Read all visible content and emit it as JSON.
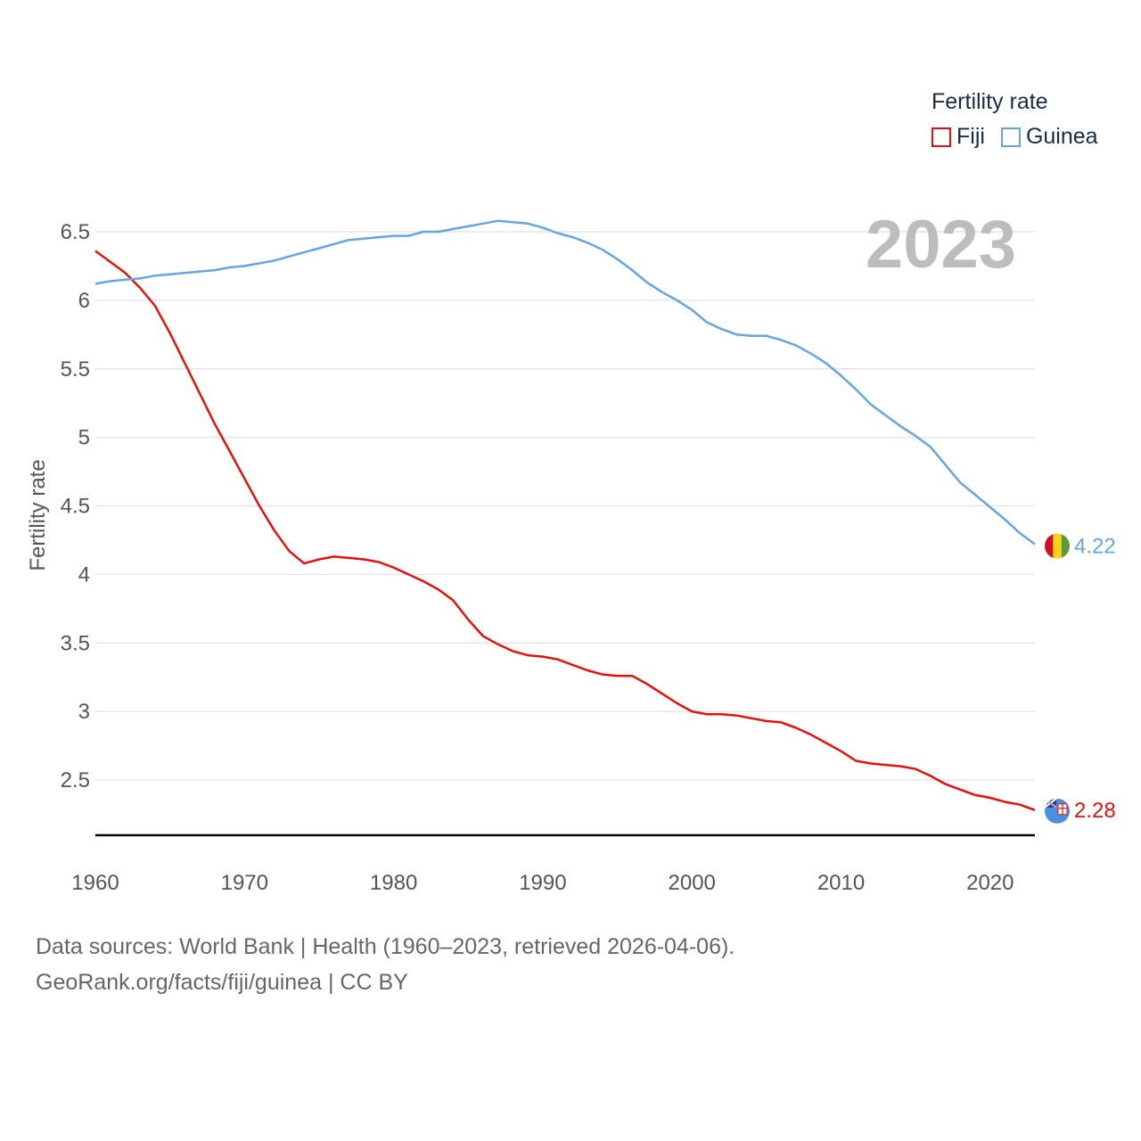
{
  "chart_data": {
    "type": "line",
    "title": "Fertility rate",
    "xlabel": "",
    "ylabel": "Fertility rate",
    "current_year_label": "2023",
    "xlim": [
      1960,
      2023
    ],
    "ylim": [
      2.1,
      6.7
    ],
    "x_ticks": [
      1960,
      1970,
      1980,
      1990,
      2000,
      2010,
      2020
    ],
    "y_ticks": [
      2.5,
      3,
      3.5,
      4,
      4.5,
      5,
      5.5,
      6,
      6.5
    ],
    "y_tick_labels": [
      "2.5",
      "3",
      "3.5",
      "4",
      "4.5",
      "5",
      "5.5",
      "6",
      "6.5"
    ],
    "x_tick_labels": [
      "1960",
      "1970",
      "1980",
      "1990",
      "2000",
      "2010",
      "2020"
    ],
    "x": [
      1960,
      1961,
      1962,
      1963,
      1964,
      1965,
      1966,
      1967,
      1968,
      1969,
      1970,
      1971,
      1972,
      1973,
      1974,
      1975,
      1976,
      1977,
      1978,
      1979,
      1980,
      1981,
      1982,
      1983,
      1984,
      1985,
      1986,
      1987,
      1988,
      1989,
      1990,
      1991,
      1992,
      1993,
      1994,
      1995,
      1996,
      1997,
      1998,
      1999,
      2000,
      2001,
      2002,
      2003,
      2004,
      2005,
      2006,
      2007,
      2008,
      2009,
      2010,
      2011,
      2012,
      2013,
      2014,
      2015,
      2016,
      2017,
      2018,
      2019,
      2020,
      2021,
      2022,
      2023
    ],
    "series": [
      {
        "name": "Fiji",
        "color": "#e8100c",
        "end_label": "2.28",
        "values": [
          6.36,
          6.28,
          6.2,
          6.09,
          5.96,
          5.76,
          5.54,
          5.32,
          5.1,
          4.9,
          4.7,
          4.5,
          4.32,
          4.17,
          4.08,
          4.11,
          4.13,
          4.12,
          4.11,
          4.09,
          4.05,
          4.0,
          3.95,
          3.89,
          3.81,
          3.67,
          3.55,
          3.49,
          3.44,
          3.41,
          3.4,
          3.38,
          3.34,
          3.3,
          3.27,
          3.26,
          3.26,
          3.2,
          3.13,
          3.06,
          3.0,
          2.98,
          2.98,
          2.97,
          2.95,
          2.93,
          2.92,
          2.88,
          2.83,
          2.77,
          2.71,
          2.64,
          2.62,
          2.61,
          2.6,
          2.58,
          2.53,
          2.47,
          2.43,
          2.39,
          2.37,
          2.34,
          2.32,
          2.28
        ]
      },
      {
        "name": "Guinea",
        "color": "#64a6e4",
        "end_label": "4.22",
        "values": [
          6.12,
          6.14,
          6.15,
          6.16,
          6.18,
          6.19,
          6.2,
          6.21,
          6.22,
          6.24,
          6.25,
          6.27,
          6.29,
          6.32,
          6.35,
          6.38,
          6.41,
          6.44,
          6.45,
          6.46,
          6.47,
          6.47,
          6.5,
          6.5,
          6.52,
          6.54,
          6.56,
          6.58,
          6.57,
          6.56,
          6.53,
          6.49,
          6.46,
          6.42,
          6.37,
          6.3,
          6.22,
          6.13,
          6.06,
          6.0,
          5.93,
          5.84,
          5.79,
          5.75,
          5.74,
          5.74,
          5.71,
          5.67,
          5.61,
          5.54,
          5.45,
          5.35,
          5.24,
          5.16,
          5.08,
          5.01,
          4.93,
          4.8,
          4.67,
          4.58,
          4.49,
          4.4,
          4.3,
          4.22
        ]
      }
    ]
  },
  "legend": {
    "title": "Fertility rate",
    "items": [
      {
        "label": "Fiji",
        "color": "#e8100c"
      },
      {
        "label": "Guinea",
        "color": "#64a6e4"
      }
    ]
  },
  "footer": {
    "line1": "Data sources: World Bank | Health (1960–2023, retrieved 2026-04-06).",
    "line2": "GeoRank.org/facts/fiji/guinea | CC BY"
  }
}
